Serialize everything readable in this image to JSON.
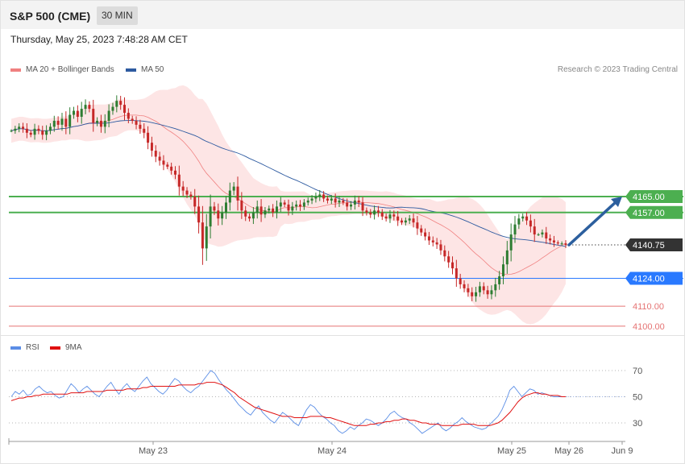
{
  "header": {
    "title": "S&P 500 (CME)",
    "timeframe": "30 MIN"
  },
  "timestamp": "Thursday, May 25, 2023 7:48:28 AM CET",
  "legend_main": [
    {
      "label": "MA 20 + Bollinger Bands",
      "color": "#f08080"
    },
    {
      "label": "MA 50",
      "color": "#2d5aa0"
    }
  ],
  "legend_rsi": [
    {
      "label": "RSI",
      "color": "#5b8ee6"
    },
    {
      "label": "9MA",
      "color": "#e01010"
    }
  ],
  "copyright": "Research © 2023 Trading Central",
  "colors": {
    "up_candle": "#2e7d32",
    "down_candle": "#c62828",
    "band_fill": "#fde0e0",
    "ma20": "#f08080",
    "ma50": "#2d5aa0",
    "green_level": "#4caf50",
    "blue_level": "#2979ff",
    "red_level": "#e57373",
    "current": "#333333",
    "arrow": "#2c5f9e"
  },
  "chart_data": [
    {
      "type": "candlestick",
      "title": "S&P 500 (CME)",
      "ylim": [
        4095,
        4240
      ],
      "x_ticks": [
        "May 23",
        "May 24",
        "May 25",
        "May 26",
        "Jun 9"
      ],
      "series": [
        {
          "name": "MA 20 + Bollinger Bands"
        },
        {
          "name": "MA 50"
        }
      ],
      "levels": [
        {
          "value": 4165.0,
          "label": "4165.00",
          "kind": "resistance"
        },
        {
          "value": 4157.0,
          "label": "4157.00",
          "kind": "resistance"
        },
        {
          "value": 4140.75,
          "label": "4140.75",
          "kind": "current"
        },
        {
          "value": 4124.0,
          "label": "4124.00",
          "kind": "support"
        },
        {
          "value": 4110.0,
          "label": "4110.00",
          "kind": "support-minor"
        },
        {
          "value": 4100.0,
          "label": "4100.00",
          "kind": "support-minor"
        }
      ],
      "forecast_target": 4165.0,
      "close_path": [
        4198,
        4199,
        4200,
        4199,
        4197,
        4196,
        4199,
        4198,
        4196,
        4198,
        4200,
        4203,
        4201,
        4204,
        4200,
        4206,
        4208,
        4205,
        4209,
        4211,
        4209,
        4202,
        4203,
        4200,
        4203,
        4208,
        4210,
        4213,
        4211,
        4207,
        4204,
        4203,
        4201,
        4199,
        4197,
        4192,
        4188,
        4185,
        4183,
        4181,
        4180,
        4178,
        4176,
        4170,
        4168,
        4166,
        4165,
        4160,
        4152,
        4139,
        4150,
        4160,
        4158,
        4154,
        4157,
        4162,
        4168,
        4170,
        4163,
        4158,
        4155,
        4154,
        4157,
        4160,
        4156,
        4158,
        4159,
        4157,
        4160,
        4162,
        4161,
        4158,
        4160,
        4161,
        4160,
        4162,
        4163,
        4164,
        4165,
        4166,
        4164,
        4163,
        4164,
        4162,
        4163,
        4162,
        4160,
        4161,
        4163,
        4162,
        4158,
        4157,
        4156,
        4158,
        4157,
        4155,
        4154,
        4156,
        4155,
        4153,
        4152,
        4153,
        4154,
        4152,
        4149,
        4147,
        4145,
        4143,
        4142,
        4141,
        4138,
        4135,
        4132,
        4129,
        4124,
        4121,
        4119,
        4117,
        4115,
        4117,
        4120,
        4118,
        4116,
        4118,
        4121,
        4125,
        4131,
        4138,
        4146,
        4151,
        4154,
        4155,
        4153,
        4150,
        4146,
        4146,
        4147,
        4144,
        4143,
        4142,
        4141.5,
        4141.5,
        4140.75
      ]
    },
    {
      "type": "line",
      "title": "RSI",
      "ylim": [
        20,
        80
      ],
      "y_ticks": [
        "70",
        "50",
        "30"
      ],
      "x_ticks": [
        "May 23",
        "May 24",
        "May 25",
        "May 26",
        "Jun 9"
      ],
      "series": [
        {
          "name": "RSI",
          "values": [
            50,
            54,
            52,
            55,
            51,
            52,
            56,
            58,
            55,
            53,
            54,
            51,
            49,
            50,
            55,
            60,
            57,
            53,
            56,
            58,
            55,
            52,
            50,
            54,
            58,
            61,
            56,
            52,
            57,
            60,
            56,
            54,
            58,
            62,
            65,
            60,
            57,
            54,
            52,
            55,
            60,
            64,
            62,
            58,
            55,
            53,
            56,
            58,
            62,
            66,
            70,
            68,
            63,
            59,
            55,
            52,
            48,
            44,
            41,
            38,
            36,
            40,
            43,
            38,
            35,
            32,
            30,
            34,
            38,
            36,
            33,
            30,
            28,
            34,
            40,
            44,
            42,
            38,
            35,
            33,
            30,
            28,
            24,
            22,
            24,
            27,
            25,
            28,
            30,
            33,
            32,
            30,
            28,
            30,
            33,
            37,
            39,
            36,
            34,
            33,
            30,
            28,
            25,
            22,
            24,
            26,
            28,
            30,
            26,
            24,
            26,
            29,
            31,
            34,
            31,
            29,
            27,
            26,
            25,
            26,
            29,
            32,
            35,
            40,
            47,
            55,
            58,
            54,
            50,
            53,
            56,
            55,
            52,
            53,
            52,
            51,
            50,
            50,
            50,
            50
          ]
        },
        {
          "name": "9MA",
          "values": [
            47,
            48,
            49,
            49,
            50,
            50,
            51,
            51,
            52,
            52,
            52,
            52,
            52,
            52,
            52,
            53,
            53,
            53,
            53,
            54,
            54,
            54,
            54,
            54,
            55,
            55,
            55,
            55,
            55,
            56,
            56,
            56,
            56,
            57,
            57,
            58,
            58,
            58,
            58,
            58,
            58,
            58,
            59,
            59,
            59,
            59,
            59,
            60,
            60,
            61,
            61,
            61,
            60,
            59,
            57,
            55,
            53,
            50,
            48,
            46,
            44,
            42,
            41,
            40,
            39,
            38,
            37,
            36,
            35,
            35,
            35,
            34,
            34,
            34,
            34,
            35,
            35,
            35,
            35,
            34,
            34,
            33,
            32,
            31,
            30,
            29,
            28,
            28,
            28,
            28,
            29,
            29,
            30,
            30,
            31,
            31,
            32,
            32,
            33,
            33,
            32,
            32,
            31,
            30,
            30,
            29,
            29,
            29,
            28,
            28,
            28,
            28,
            28,
            29,
            29,
            29,
            29,
            28,
            28,
            28,
            28,
            29,
            30,
            32,
            35,
            38,
            42,
            46,
            49,
            51,
            52,
            53,
            53,
            52,
            52,
            51,
            51,
            51,
            50,
            50
          ]
        }
      ]
    }
  ]
}
